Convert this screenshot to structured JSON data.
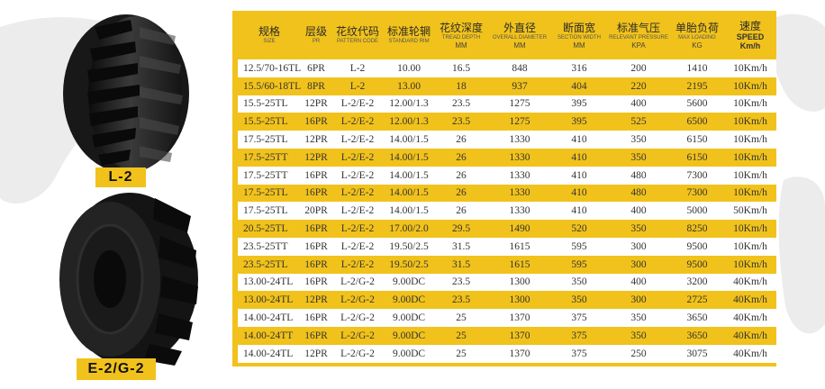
{
  "labels": {
    "l2": "L-2",
    "e2g2": "E-2/G-2"
  },
  "header": {
    "size": {
      "zh": "规格",
      "en": "SIZE"
    },
    "ply": {
      "zh": "层级",
      "en": "PR"
    },
    "pattern": {
      "zh": "花纹代码",
      "en": "PATTERN CODE"
    },
    "rim": {
      "zh": "标准轮辋",
      "en": "STANDARD RIM"
    },
    "depth": {
      "zh": "花纹深度",
      "en": "TREAD DEPTH",
      "unit": "MM"
    },
    "diameter": {
      "zh": "外直径",
      "en": "OVERALL DIAMETER",
      "unit": "MM"
    },
    "width": {
      "zh": "断面宽",
      "en": "SECTION WIDTH",
      "unit": "MM"
    },
    "pressure": {
      "zh": "标准气压",
      "en": "RELEVANT PRESSURE",
      "unit": "KPA"
    },
    "load": {
      "zh": "单胎负荷",
      "en": "MAX LOADING",
      "unit": "KG"
    },
    "speed": {
      "zh": "速度",
      "en": "SPEED",
      "unit": "Km/h"
    }
  },
  "rows": [
    [
      "12.5/70-16TL",
      "6PR",
      "L-2",
      "10.00",
      "16.5",
      "848",
      "316",
      "200",
      "1410",
      "10Km/h"
    ],
    [
      "15.5/60-18TL",
      "8PR",
      "L-2",
      "13.00",
      "18",
      "937",
      "404",
      "220",
      "2195",
      "10Km/h"
    ],
    [
      "15.5-25TL",
      "12PR",
      "L-2/E-2",
      "12.00/1.3",
      "23.5",
      "1275",
      "395",
      "400",
      "5600",
      "10Km/h"
    ],
    [
      "15.5-25TL",
      "16PR",
      "L-2/E-2",
      "12.00/1.3",
      "23.5",
      "1275",
      "395",
      "525",
      "6500",
      "10Km/h"
    ],
    [
      "17.5-25TL",
      "12PR",
      "L-2/E-2",
      "14.00/1.5",
      "26",
      "1330",
      "410",
      "350",
      "6150",
      "10Km/h"
    ],
    [
      "17.5-25TT",
      "12PR",
      "L-2/E-2",
      "14.00/1.5",
      "26",
      "1330",
      "410",
      "350",
      "6150",
      "10Km/h"
    ],
    [
      "17.5-25TT",
      "16PR",
      "L-2/E-2",
      "14.00/1.5",
      "26",
      "1330",
      "410",
      "480",
      "7300",
      "10Km/h"
    ],
    [
      "17.5-25TL",
      "16PR",
      "L-2/E-2",
      "14.00/1.5",
      "26",
      "1330",
      "410",
      "480",
      "7300",
      "10Km/h"
    ],
    [
      "17.5-25TL",
      "20PR",
      "L-2/E-2",
      "14.00/1.5",
      "26",
      "1330",
      "410",
      "400",
      "5000",
      "50Km/h"
    ],
    [
      "20.5-25TL",
      "16PR",
      "L-2/E-2",
      "17.00/2.0",
      "29.5",
      "1490",
      "520",
      "350",
      "8250",
      "10Km/h"
    ],
    [
      "23.5-25TT",
      "16PR",
      "L-2/E-2",
      "19.50/2.5",
      "31.5",
      "1615",
      "595",
      "300",
      "9500",
      "10Km/h"
    ],
    [
      "23.5-25TL",
      "16PR",
      "L-2/E-2",
      "19.50/2.5",
      "31.5",
      "1615",
      "595",
      "300",
      "9500",
      "10Km/h"
    ],
    [
      "13.00-24TL",
      "16PR",
      "L-2/G-2",
      "9.00DC",
      "23.5",
      "1300",
      "350",
      "400",
      "3200",
      "40Km/h"
    ],
    [
      "13.00-24TL",
      "12PR",
      "L-2/G-2",
      "9.00DC",
      "23.5",
      "1300",
      "350",
      "300",
      "2725",
      "40Km/h"
    ],
    [
      "14.00-24TL",
      "16PR",
      "L-2/G-2",
      "9.00DC",
      "25",
      "1370",
      "375",
      "350",
      "3650",
      "40Km/h"
    ],
    [
      "14.00-24TT",
      "16PR",
      "L-2/G-2",
      "9.00DC",
      "25",
      "1370",
      "375",
      "350",
      "3650",
      "40Km/h"
    ],
    [
      "14.00-24TL",
      "12PR",
      "L-2/G-2",
      "9.00DC",
      "25",
      "1370",
      "375",
      "250",
      "3075",
      "40Km/h"
    ]
  ]
}
